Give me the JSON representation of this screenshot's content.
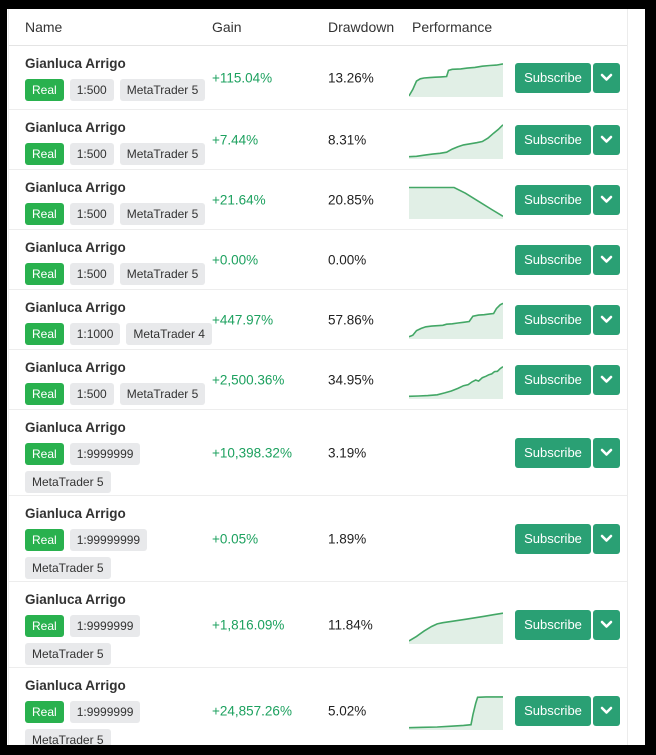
{
  "header": {
    "name": "Name",
    "gain": "Gain",
    "drawdown": "Drawdown",
    "performance": "Performance"
  },
  "actions": {
    "subscribe_label": "Subscribe",
    "dropdown_icon": "chevron-down"
  },
  "colors": {
    "badge_green": "#29b14e",
    "button_green": "#2aa074",
    "gain_green": "#1da15f",
    "spark_line": "#43a766",
    "spark_fill": "#e1efe6"
  },
  "rows": [
    {
      "name": "Gianluca Arrigo",
      "badge_lines": [
        [
          {
            "label": "Real",
            "style": "real"
          },
          {
            "label": "1:500",
            "style": "gray"
          },
          {
            "label": "MetaTrader 5",
            "style": "gray"
          }
        ]
      ],
      "gain": "+115.04%",
      "drawdown": "13.26%",
      "spark": [
        [
          0,
          0.97
        ],
        [
          0.04,
          0.8
        ],
        [
          0.08,
          0.58
        ],
        [
          0.12,
          0.52
        ],
        [
          0.16,
          0.5
        ],
        [
          0.22,
          0.49
        ],
        [
          0.28,
          0.48
        ],
        [
          0.34,
          0.47
        ],
        [
          0.4,
          0.46
        ],
        [
          0.42,
          0.3
        ],
        [
          0.46,
          0.27
        ],
        [
          0.55,
          0.26
        ],
        [
          0.62,
          0.24
        ],
        [
          0.7,
          0.22
        ],
        [
          0.78,
          0.19
        ],
        [
          0.86,
          0.17
        ],
        [
          0.93,
          0.16
        ],
        [
          1,
          0.13
        ]
      ]
    },
    {
      "name": "Gianluca Arrigo",
      "badge_lines": [
        [
          {
            "label": "Real",
            "style": "real"
          },
          {
            "label": "1:500",
            "style": "gray"
          },
          {
            "label": "MetaTrader 5",
            "style": "gray"
          }
        ]
      ],
      "gain": "+7.44%",
      "drawdown": "8.31%",
      "spark": [
        [
          0,
          0.94
        ],
        [
          0.08,
          0.93
        ],
        [
          0.16,
          0.9
        ],
        [
          0.25,
          0.87
        ],
        [
          0.33,
          0.85
        ],
        [
          0.4,
          0.82
        ],
        [
          0.46,
          0.74
        ],
        [
          0.52,
          0.68
        ],
        [
          0.58,
          0.63
        ],
        [
          0.65,
          0.6
        ],
        [
          0.72,
          0.57
        ],
        [
          0.78,
          0.54
        ],
        [
          0.84,
          0.45
        ],
        [
          0.9,
          0.32
        ],
        [
          0.95,
          0.22
        ],
        [
          1,
          0.1
        ]
      ]
    },
    {
      "name": "Gianluca Arrigo",
      "badge_lines": [
        [
          {
            "label": "Real",
            "style": "real"
          },
          {
            "label": "1:500",
            "style": "gray"
          },
          {
            "label": "MetaTrader 5",
            "style": "gray"
          }
        ]
      ],
      "gain": "+21.64%",
      "drawdown": "20.85%",
      "spark": [
        [
          0,
          0.17
        ],
        [
          0.48,
          0.17
        ],
        [
          0.6,
          0.32
        ],
        [
          0.75,
          0.55
        ],
        [
          0.88,
          0.75
        ],
        [
          1,
          0.93
        ]
      ]
    },
    {
      "name": "Gianluca Arrigo",
      "badge_lines": [
        [
          {
            "label": "Real",
            "style": "real"
          },
          {
            "label": "1:500",
            "style": "gray"
          },
          {
            "label": "MetaTrader 5",
            "style": "gray"
          }
        ]
      ],
      "gain": "+0.00%",
      "drawdown": "0.00%",
      "spark": null
    },
    {
      "name": "Gianluca Arrigo",
      "badge_lines": [
        [
          {
            "label": "Real",
            "style": "real"
          },
          {
            "label": "1:1000",
            "style": "gray"
          },
          {
            "label": "MetaTrader 4",
            "style": "gray"
          }
        ]
      ],
      "gain": "+447.97%",
      "drawdown": "57.86%",
      "spark": [
        [
          0,
          0.94
        ],
        [
          0.04,
          0.9
        ],
        [
          0.08,
          0.78
        ],
        [
          0.13,
          0.72
        ],
        [
          0.18,
          0.68
        ],
        [
          0.24,
          0.66
        ],
        [
          0.3,
          0.65
        ],
        [
          0.36,
          0.64
        ],
        [
          0.4,
          0.61
        ],
        [
          0.46,
          0.6
        ],
        [
          0.52,
          0.58
        ],
        [
          0.58,
          0.56
        ],
        [
          0.64,
          0.54
        ],
        [
          0.68,
          0.4
        ],
        [
          0.74,
          0.37
        ],
        [
          0.8,
          0.36
        ],
        [
          0.86,
          0.34
        ],
        [
          0.9,
          0.33
        ],
        [
          0.93,
          0.2
        ],
        [
          0.97,
          0.1
        ],
        [
          1,
          0.06
        ]
      ]
    },
    {
      "name": "Gianluca Arrigo",
      "badge_lines": [
        [
          {
            "label": "Real",
            "style": "real"
          },
          {
            "label": "1:500",
            "style": "gray"
          },
          {
            "label": "MetaTrader 5",
            "style": "gray"
          }
        ]
      ],
      "gain": "+2,500.36%",
      "drawdown": "34.95%",
      "spark": [
        [
          0,
          0.93
        ],
        [
          0.1,
          0.92
        ],
        [
          0.2,
          0.91
        ],
        [
          0.3,
          0.89
        ],
        [
          0.38,
          0.84
        ],
        [
          0.45,
          0.79
        ],
        [
          0.52,
          0.72
        ],
        [
          0.58,
          0.65
        ],
        [
          0.63,
          0.62
        ],
        [
          0.67,
          0.55
        ],
        [
          0.71,
          0.5
        ],
        [
          0.74,
          0.53
        ],
        [
          0.78,
          0.44
        ],
        [
          0.82,
          0.4
        ],
        [
          0.85,
          0.36
        ],
        [
          0.88,
          0.34
        ],
        [
          0.91,
          0.28
        ],
        [
          0.94,
          0.27
        ],
        [
          0.97,
          0.2
        ],
        [
          1,
          0.15
        ]
      ]
    },
    {
      "name": "Gianluca Arrigo",
      "badge_lines": [
        [
          {
            "label": "Real",
            "style": "real"
          },
          {
            "label": "1:9999999",
            "style": "gray"
          }
        ],
        [
          {
            "label": "MetaTrader 5",
            "style": "gray"
          }
        ]
      ],
      "gain": "+10,398.32%",
      "drawdown": "3.19%",
      "spark": null
    },
    {
      "name": "Gianluca Arrigo",
      "badge_lines": [
        [
          {
            "label": "Real",
            "style": "real"
          },
          {
            "label": "1:99999999",
            "style": "gray"
          }
        ],
        [
          {
            "label": "MetaTrader 5",
            "style": "gray"
          }
        ]
      ],
      "gain": "+0.05%",
      "drawdown": "1.89%",
      "spark": null
    },
    {
      "name": "Gianluca Arrigo",
      "badge_lines": [
        [
          {
            "label": "Real",
            "style": "real"
          },
          {
            "label": "1:9999999",
            "style": "gray"
          }
        ],
        [
          {
            "label": "MetaTrader 5",
            "style": "gray"
          }
        ]
      ],
      "gain": "+1,816.09%",
      "drawdown": "11.84%",
      "spark": [
        [
          0,
          0.92
        ],
        [
          0.08,
          0.8
        ],
        [
          0.16,
          0.66
        ],
        [
          0.24,
          0.54
        ],
        [
          0.3,
          0.47
        ],
        [
          0.36,
          0.44
        ],
        [
          0.44,
          0.41
        ],
        [
          0.52,
          0.38
        ],
        [
          0.6,
          0.35
        ],
        [
          0.7,
          0.31
        ],
        [
          0.8,
          0.27
        ],
        [
          0.9,
          0.23
        ],
        [
          1,
          0.19
        ]
      ]
    },
    {
      "name": "Gianluca Arrigo",
      "badge_lines": [
        [
          {
            "label": "Real",
            "style": "real"
          },
          {
            "label": "1:9999999",
            "style": "gray"
          }
        ],
        [
          {
            "label": "MetaTrader 5",
            "style": "gray"
          }
        ]
      ],
      "gain": "+24,857.26%",
      "drawdown": "5.02%",
      "spark": [
        [
          0,
          0.94
        ],
        [
          0.15,
          0.93
        ],
        [
          0.3,
          0.92
        ],
        [
          0.45,
          0.9
        ],
        [
          0.58,
          0.88
        ],
        [
          0.66,
          0.86
        ],
        [
          0.68,
          0.6
        ],
        [
          0.71,
          0.3
        ],
        [
          0.73,
          0.14
        ],
        [
          0.82,
          0.13
        ],
        [
          0.91,
          0.13
        ],
        [
          1,
          0.13
        ]
      ]
    }
  ]
}
